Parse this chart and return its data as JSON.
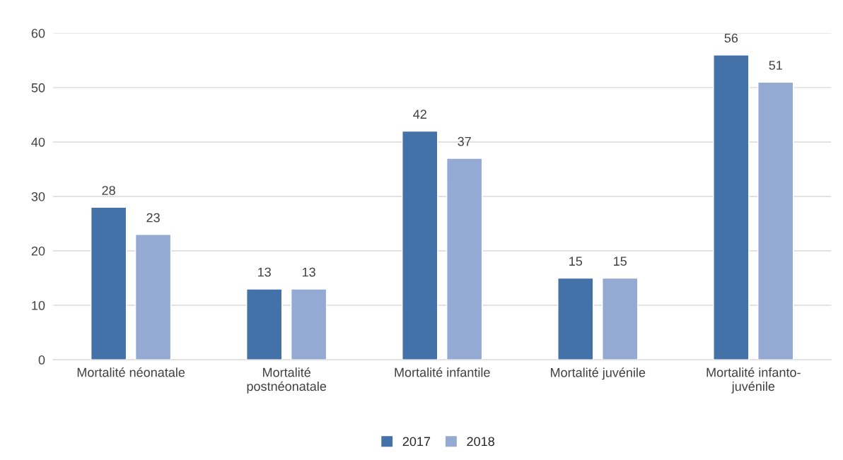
{
  "chart_data": {
    "type": "bar",
    "categories": [
      "Mortalité néonatale",
      "Mortalité\npostnéonatale",
      "Mortalité infantile",
      "Mortalité juvénile",
      "Mortalité infanto-\njuvénile"
    ],
    "series": [
      {
        "name": "2017",
        "color": "#4472a8",
        "values": [
          28,
          13,
          42,
          15,
          56
        ]
      },
      {
        "name": "2018",
        "color": "#95aad3",
        "values": [
          23,
          13,
          37,
          15,
          51
        ]
      }
    ],
    "ylim": [
      0,
      60
    ],
    "yticks": [
      0,
      10,
      20,
      30,
      40,
      50,
      60
    ],
    "grid": "y",
    "legend": "bottom",
    "data_labels": true
  }
}
